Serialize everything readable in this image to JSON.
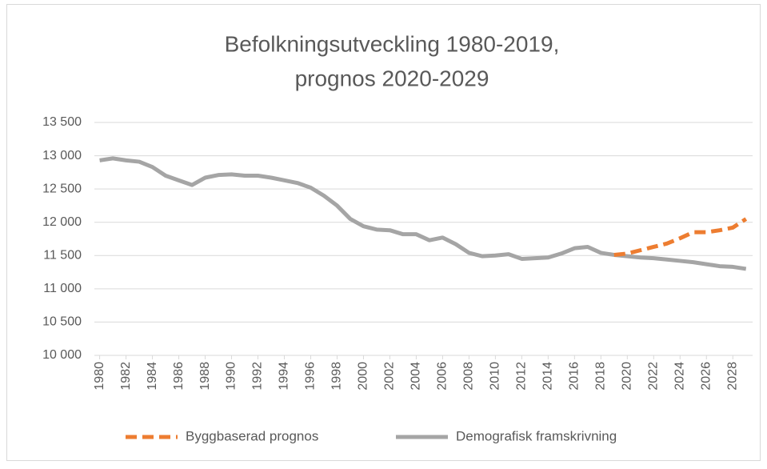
{
  "chart_data": {
    "type": "line",
    "title": [
      "Befolkningsutveckling 1980-2019,",
      "prognos 2020-2029"
    ],
    "x": [
      1980,
      1981,
      1982,
      1983,
      1984,
      1985,
      1986,
      1987,
      1988,
      1989,
      1990,
      1991,
      1992,
      1993,
      1994,
      1995,
      1996,
      1997,
      1998,
      1999,
      2000,
      2001,
      2002,
      2003,
      2004,
      2005,
      2006,
      2007,
      2008,
      2009,
      2010,
      2011,
      2012,
      2013,
      2014,
      2015,
      2016,
      2017,
      2018,
      2019,
      2020,
      2021,
      2022,
      2023,
      2024,
      2025,
      2026,
      2027,
      2028,
      2029
    ],
    "series": [
      {
        "name": "Byggbaserad prognos",
        "color": "#ed7d31",
        "dashed": true,
        "values": [
          null,
          null,
          null,
          null,
          null,
          null,
          null,
          null,
          null,
          null,
          null,
          null,
          null,
          null,
          null,
          null,
          null,
          null,
          null,
          null,
          null,
          null,
          null,
          null,
          null,
          null,
          null,
          null,
          null,
          null,
          null,
          null,
          null,
          null,
          null,
          null,
          null,
          null,
          null,
          11510,
          11530,
          11580,
          11630,
          11680,
          11760,
          11850,
          11850,
          11880,
          11920,
          12050
        ]
      },
      {
        "name": "Demografisk framskrivning",
        "color": "#a5a5a5",
        "dashed": false,
        "values": [
          12930,
          12960,
          12930,
          12910,
          12830,
          12700,
          12630,
          12560,
          12670,
          12710,
          12720,
          12700,
          12700,
          12670,
          12630,
          12590,
          12520,
          12400,
          12250,
          12050,
          11940,
          11890,
          11880,
          11820,
          11820,
          11730,
          11770,
          11670,
          11540,
          11490,
          11500,
          11520,
          11450,
          11460,
          11470,
          11530,
          11610,
          11630,
          11540,
          11510,
          11490,
          11470,
          11460,
          11440,
          11420,
          11400,
          11370,
          11340,
          11330,
          11300
        ]
      }
    ],
    "xlim": [
      1979.6,
      2029.5
    ],
    "xticks": [
      1980,
      1982,
      1984,
      1986,
      1988,
      1990,
      1992,
      1994,
      1996,
      1998,
      2000,
      2002,
      2004,
      2006,
      2008,
      2010,
      2012,
      2014,
      2016,
      2018,
      2020,
      2022,
      2024,
      2026,
      2028
    ],
    "ylim": [
      10000,
      13500
    ],
    "yticks": [
      {
        "value": 10000,
        "label": "10 000"
      },
      {
        "value": 10500,
        "label": "10 500"
      },
      {
        "value": 11000,
        "label": "11 000"
      },
      {
        "value": 11500,
        "label": "11 500"
      },
      {
        "value": 12000,
        "label": "12 000"
      },
      {
        "value": 12500,
        "label": "12 500"
      },
      {
        "value": 13000,
        "label": "13 000"
      },
      {
        "value": 13500,
        "label": "13 500"
      }
    ],
    "grid": true,
    "legend": "bottom"
  }
}
